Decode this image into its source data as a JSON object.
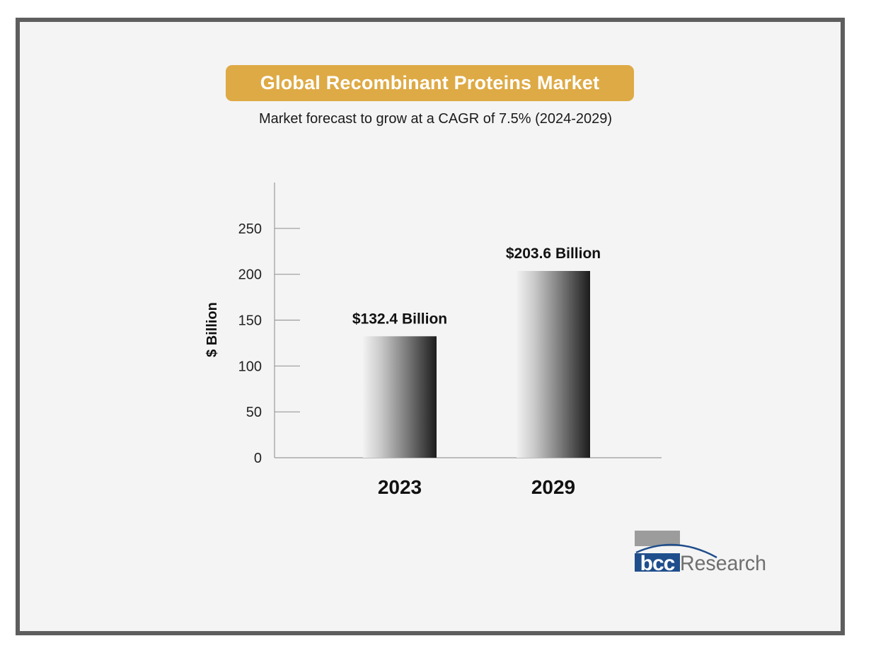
{
  "header": {
    "title": "Global Recombinant Proteins Market",
    "subtitle": "Market forecast to grow at a CAGR of 7.5% (2024-2029)"
  },
  "chart_data": {
    "type": "bar",
    "title": "Global Recombinant Proteins Market",
    "subtitle": "Market forecast to grow at a CAGR of 7.5% (2024-2029)",
    "categories": [
      "2023",
      "2029"
    ],
    "values": [
      132.4,
      203.6
    ],
    "data_labels": [
      "$132.4 Billion",
      "$203.6 Billion"
    ],
    "xlabel": "",
    "ylabel": "$ Billion",
    "ylim": [
      0,
      300
    ],
    "yticks": [
      0,
      50,
      100,
      150,
      200,
      250
    ],
    "ytick_labels": [
      "0",
      "50",
      "100",
      "150",
      "200",
      "250"
    ],
    "grid": false,
    "legend": "none"
  },
  "branding": {
    "logo_text": "bccResearch",
    "logo_mark": "bcc",
    "logo_word": "Research"
  },
  "colors": {
    "title_background": "#deaa45",
    "frame_border": "#5e5e5e",
    "background": "#f4f4f4",
    "logo_blue": "#1f4e8c"
  }
}
